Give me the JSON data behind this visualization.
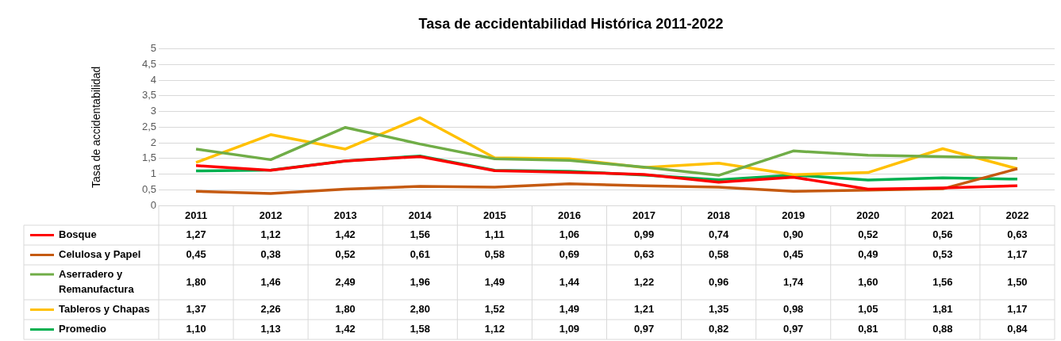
{
  "chart_data": {
    "type": "line",
    "title": "Tasa de accidentabilidad Histórica 2011-2022",
    "ylabel": "Tasa de accidentabilidad",
    "categories": [
      "2011",
      "2012",
      "2013",
      "2014",
      "2015",
      "2016",
      "2017",
      "2018",
      "2019",
      "2020",
      "2021",
      "2022"
    ],
    "ylim": [
      0,
      5
    ],
    "yticks": [
      0,
      {
        "value": 0.5,
        "label": "0,5"
      },
      1,
      {
        "value": 1.5,
        "label": "1,5"
      },
      2,
      {
        "value": 2.5,
        "label": "2,5"
      },
      3,
      {
        "value": 3.5,
        "label": "3,5"
      },
      4,
      {
        "value": 4.5,
        "label": "4,5"
      },
      5
    ],
    "grid": "y",
    "legend": "bottom left",
    "marker": "none",
    "line_style": "solid",
    "series": [
      {
        "name": "Bosque",
        "color": "#ff0000",
        "values": [
          1.27,
          1.12,
          1.42,
          1.56,
          1.11,
          1.06,
          0.99,
          0.74,
          0.9,
          0.52,
          0.56,
          0.63
        ],
        "value_labels": [
          "1,27",
          "1,12",
          "1,42",
          "1,56",
          "1,11",
          "1,06",
          "0,99",
          "0,74",
          "0,90",
          "0,52",
          "0,56",
          "0,63"
        ]
      },
      {
        "name": "Celulosa y Papel",
        "color": "#c55a11",
        "values": [
          0.45,
          0.38,
          0.52,
          0.61,
          0.58,
          0.69,
          0.63,
          0.58,
          0.45,
          0.49,
          0.53,
          1.17
        ],
        "value_labels": [
          "0,45",
          "0,38",
          "0,52",
          "0,61",
          "0,58",
          "0,69",
          "0,63",
          "0,58",
          "0,45",
          "0,49",
          "0,53",
          "1,17"
        ]
      },
      {
        "name": "Aserradero y Remanufactura",
        "color": "#70ad47",
        "values": [
          1.8,
          1.46,
          2.49,
          1.96,
          1.49,
          1.44,
          1.22,
          0.96,
          1.74,
          1.6,
          1.56,
          1.5
        ],
        "value_labels": [
          "1,80",
          "1,46",
          "2,49",
          "1,96",
          "1,49",
          "1,44",
          "1,22",
          "0,96",
          "1,74",
          "1,60",
          "1,56",
          "1,50"
        ]
      },
      {
        "name": "Tableros y Chapas",
        "color": "#ffc000",
        "values": [
          1.37,
          2.26,
          1.8,
          2.8,
          1.52,
          1.49,
          1.21,
          1.35,
          0.98,
          1.05,
          1.81,
          1.17
        ],
        "value_labels": [
          "1,37",
          "2,26",
          "1,80",
          "2,80",
          "1,52",
          "1,49",
          "1,21",
          "1,35",
          "0,98",
          "1,05",
          "1,81",
          "1,17"
        ]
      },
      {
        "name": "Promedio",
        "color": "#00b050",
        "values": [
          1.1,
          1.13,
          1.42,
          1.58,
          1.12,
          1.09,
          0.97,
          0.82,
          0.97,
          0.81,
          0.88,
          0.84
        ],
        "value_labels": [
          "1,10",
          "1,13",
          "1,42",
          "1,58",
          "1,12",
          "1,09",
          "0,97",
          "0,82",
          "0,97",
          "0,81",
          "0,88",
          "0,84"
        ]
      }
    ]
  }
}
